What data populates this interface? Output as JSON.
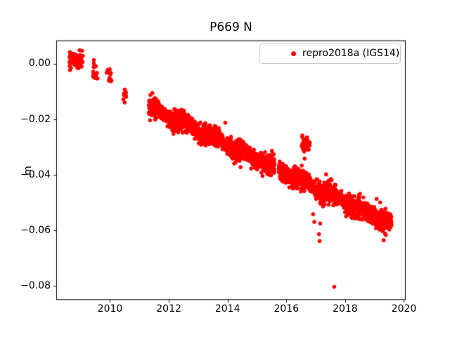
{
  "title": "P669 N",
  "ylabel": "m",
  "legend": {
    "label": "repro2018a (IGS14)",
    "marker_color": "#ff0000"
  },
  "colors": {
    "marker": "#ff0000",
    "axes": "#000000",
    "legend_border": "#cccccc",
    "background": "#ffffff"
  },
  "axes": {
    "x_range": [
      2008.17,
      2020.06
    ],
    "y_range": [
      -0.085,
      0.00845
    ],
    "x_ticks": [
      2010,
      2012,
      2014,
      2016,
      2018,
      2020
    ],
    "x_tick_labels": [
      "2010",
      "2012",
      "2014",
      "2016",
      "2018",
      "2020"
    ],
    "y_ticks": [
      0,
      -0.02,
      -0.04,
      -0.06,
      -0.08
    ],
    "y_tick_labels": [
      "0.00",
      "−0.02",
      "−0.04",
      "−0.06",
      "−0.08"
    ]
  },
  "chart_data": {
    "type": "scatter",
    "title": "P669 N",
    "xlabel": "",
    "ylabel": "m",
    "series_name": "repro2018a (IGS14)",
    "legend_position": "upper right",
    "grid": false,
    "marker": {
      "shape": "dot",
      "color": "#ff0000",
      "radius_px": 2.8
    },
    "xlim": [
      2008.17,
      2020.06
    ],
    "ylim": [
      -0.085,
      0.00845
    ],
    "clusters": [
      {
        "t_start": 2008.62,
        "t_end": 2009.08,
        "n": 75,
        "value_mean": 0.0014,
        "value_sigma": 0.0016
      },
      {
        "t_start": 2009.44,
        "t_end": 2009.47,
        "n": 2,
        "value_mean": 0.0006,
        "value_sigma": 0.0004
      },
      {
        "t_start": 2009.41,
        "t_end": 2009.6,
        "n": 16,
        "value_mean": -0.0036,
        "value_sigma": 0.0013
      },
      {
        "t_start": 2009.88,
        "t_end": 2010.04,
        "n": 7,
        "value_mean": -0.0027,
        "value_sigma": 0.0007
      },
      {
        "t_start": 2009.9,
        "t_end": 2010.05,
        "n": 7,
        "value_mean": -0.0058,
        "value_sigma": 0.0007
      },
      {
        "t_start": 2010.44,
        "t_end": 2010.56,
        "n": 10,
        "value_mean": -0.0109,
        "value_sigma": 0.0013
      },
      {
        "t_start": 2016.51,
        "t_end": 2016.8,
        "n": 38,
        "value_mean": -0.0291,
        "value_sigma": 0.0014
      }
    ],
    "band": {
      "t_start": 2011.32,
      "t_end": 2019.58,
      "points_per_year": 310,
      "value_at_2011_33": -0.0155,
      "slope_m_per_year": -0.00511,
      "seasonal_amplitude": 0.0009,
      "noise_sigma_base": 0.0013,
      "noise_sigma_seasonal": 0.0007,
      "gaps": [
        [
          2015.6,
          2015.74
        ]
      ]
    },
    "outliers": [
      [
        2013.92,
        -0.0212
      ],
      [
        2014.44,
        -0.0372
      ],
      [
        2014.8,
        -0.0377
      ],
      [
        2016.62,
        -0.0341
      ],
      [
        2016.91,
        -0.0541
      ],
      [
        2016.95,
        -0.0569
      ],
      [
        2017.11,
        -0.0613
      ],
      [
        2017.13,
        -0.0638
      ],
      [
        2017.15,
        -0.0575
      ],
      [
        2017.35,
        -0.0398
      ],
      [
        2017.51,
        -0.0415
      ],
      [
        2017.63,
        -0.0803
      ],
      [
        2018.03,
        -0.0549
      ],
      [
        2019.07,
        -0.0486
      ],
      [
        2019.19,
        -0.0499
      ],
      [
        2019.31,
        -0.0635
      ]
    ]
  }
}
